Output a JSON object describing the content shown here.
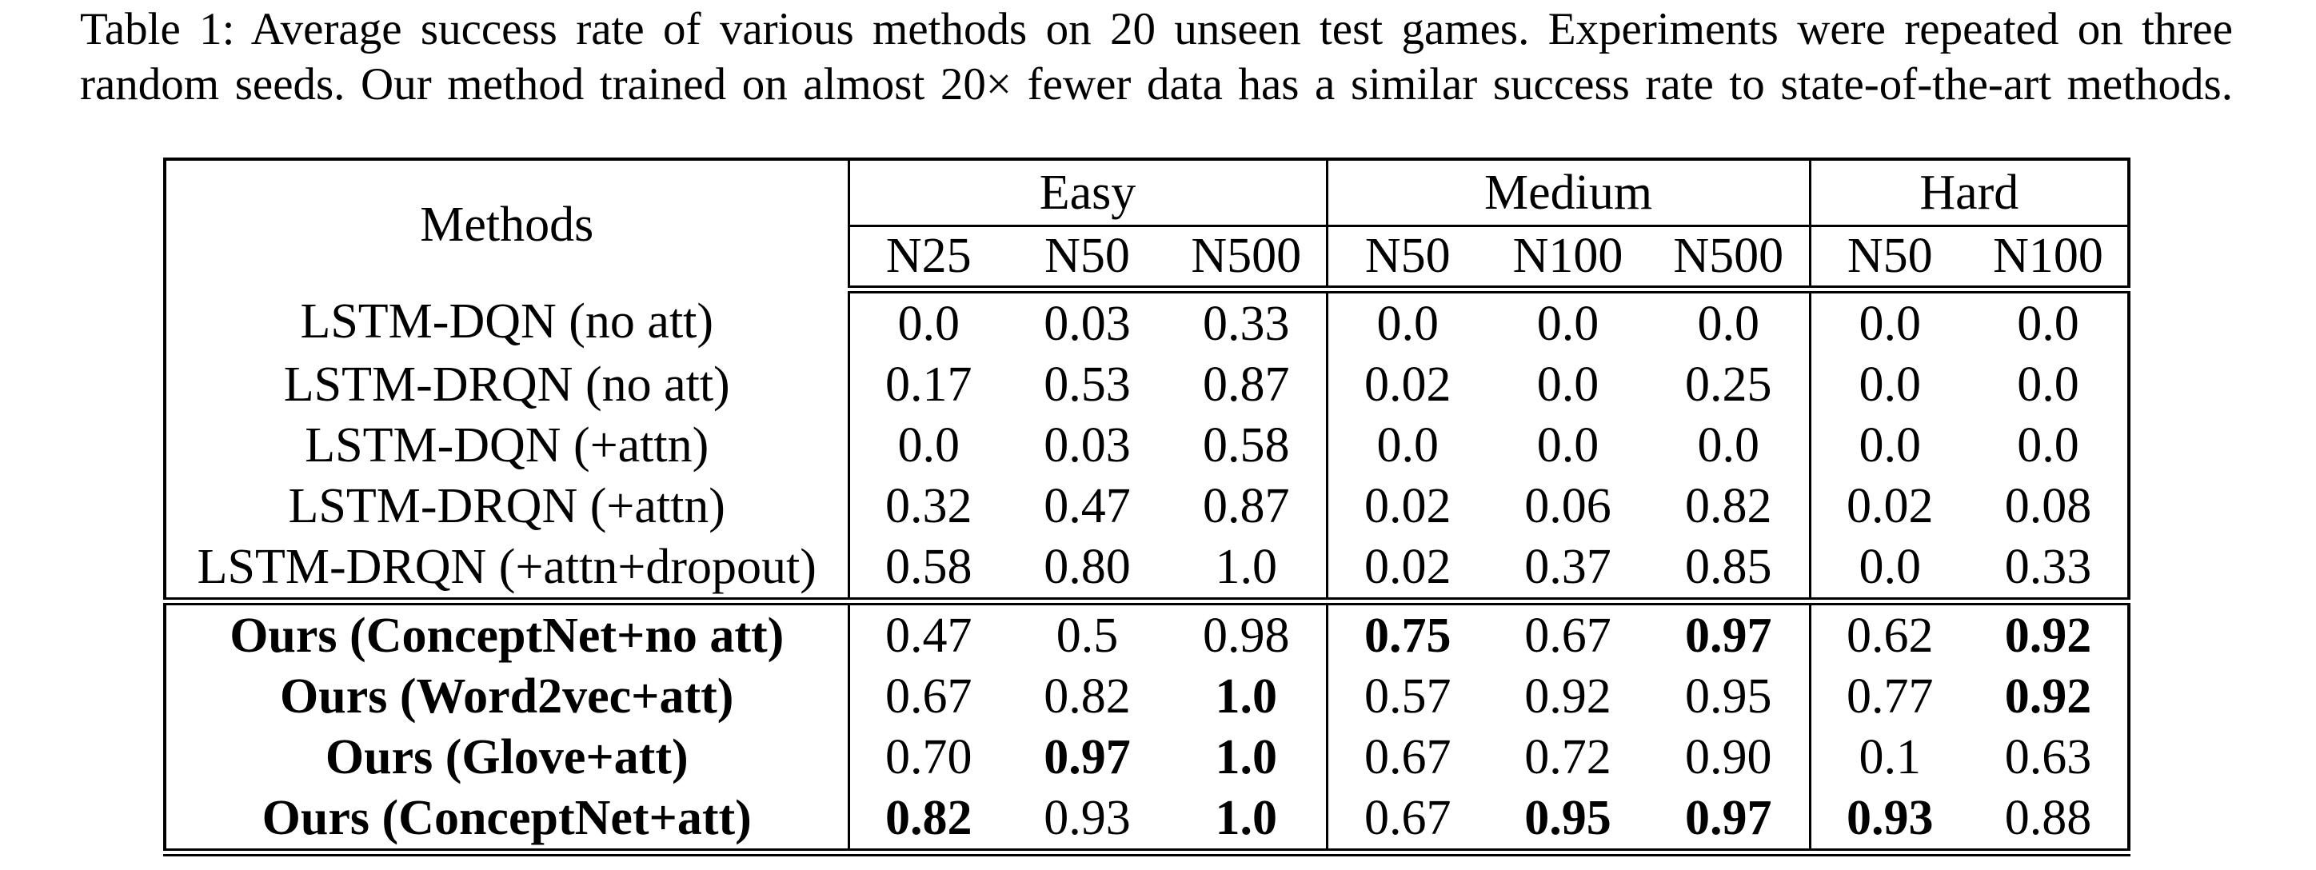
{
  "caption": {
    "line1": "Table 1: Average success rate of various methods on 20 unseen test games. Experiments were repeated on three",
    "line2": "random seeds. Our method trained on almost 20× fewer data has a similar success rate to state-of-the-art methods."
  },
  "table": {
    "corner_header": "Methods",
    "groups": [
      {
        "label": "Easy",
        "cols": [
          "N25",
          "N50",
          "N500"
        ]
      },
      {
        "label": "Medium",
        "cols": [
          "N50",
          "N100",
          "N500"
        ]
      },
      {
        "label": "Hard",
        "cols": [
          "N50",
          "N100"
        ]
      }
    ],
    "baseline_rows": [
      {
        "method": "LSTM-DQN (no att)",
        "bold_method": false,
        "values": [
          "0.0",
          "0.03",
          "0.33",
          "0.0",
          "0.0",
          "0.0",
          "0.0",
          "0.0"
        ],
        "bold_values": []
      },
      {
        "method": "LSTM-DRQN (no att)",
        "bold_method": false,
        "values": [
          "0.17",
          "0.53",
          "0.87",
          "0.02",
          "0.0",
          "0.25",
          "0.0",
          "0.0"
        ],
        "bold_values": []
      },
      {
        "method": "LSTM-DQN (+attn)",
        "bold_method": false,
        "values": [
          "0.0",
          "0.03",
          "0.58",
          "0.0",
          "0.0",
          "0.0",
          "0.0",
          "0.0"
        ],
        "bold_values": []
      },
      {
        "method": "LSTM-DRQN (+attn)",
        "bold_method": false,
        "values": [
          "0.32",
          "0.47",
          "0.87",
          "0.02",
          "0.06",
          "0.82",
          "0.02",
          "0.08"
        ],
        "bold_values": []
      },
      {
        "method": "LSTM-DRQN (+attn+dropout)",
        "bold_method": false,
        "values": [
          "0.58",
          "0.80",
          "1.0",
          "0.02",
          "0.37",
          "0.85",
          "0.0",
          "0.33"
        ],
        "bold_values": []
      }
    ],
    "ours_rows": [
      {
        "method": "Ours (ConceptNet+no att)",
        "bold_method": true,
        "values": [
          "0.47",
          "0.5",
          "0.98",
          "0.75",
          "0.67",
          "0.97",
          "0.62",
          "0.92"
        ],
        "bold_values": [
          3,
          5,
          7
        ]
      },
      {
        "method": "Ours (Word2vec+att)",
        "bold_method": true,
        "values": [
          "0.67",
          "0.82",
          "1.0",
          "0.57",
          "0.92",
          "0.95",
          "0.77",
          "0.92"
        ],
        "bold_values": [
          2,
          7
        ]
      },
      {
        "method": "Ours (Glove+att)",
        "bold_method": true,
        "values": [
          "0.70",
          "0.97",
          "1.0",
          "0.67",
          "0.72",
          "0.90",
          "0.1",
          "0.63"
        ],
        "bold_values": [
          1,
          2
        ]
      },
      {
        "method": "Ours (ConceptNet+att)",
        "bold_method": true,
        "values": [
          "0.82",
          "0.93",
          "1.0",
          "0.67",
          "0.95",
          "0.97",
          "0.93",
          "0.88"
        ],
        "bold_values": [
          0,
          2,
          4,
          5,
          6
        ]
      }
    ]
  }
}
